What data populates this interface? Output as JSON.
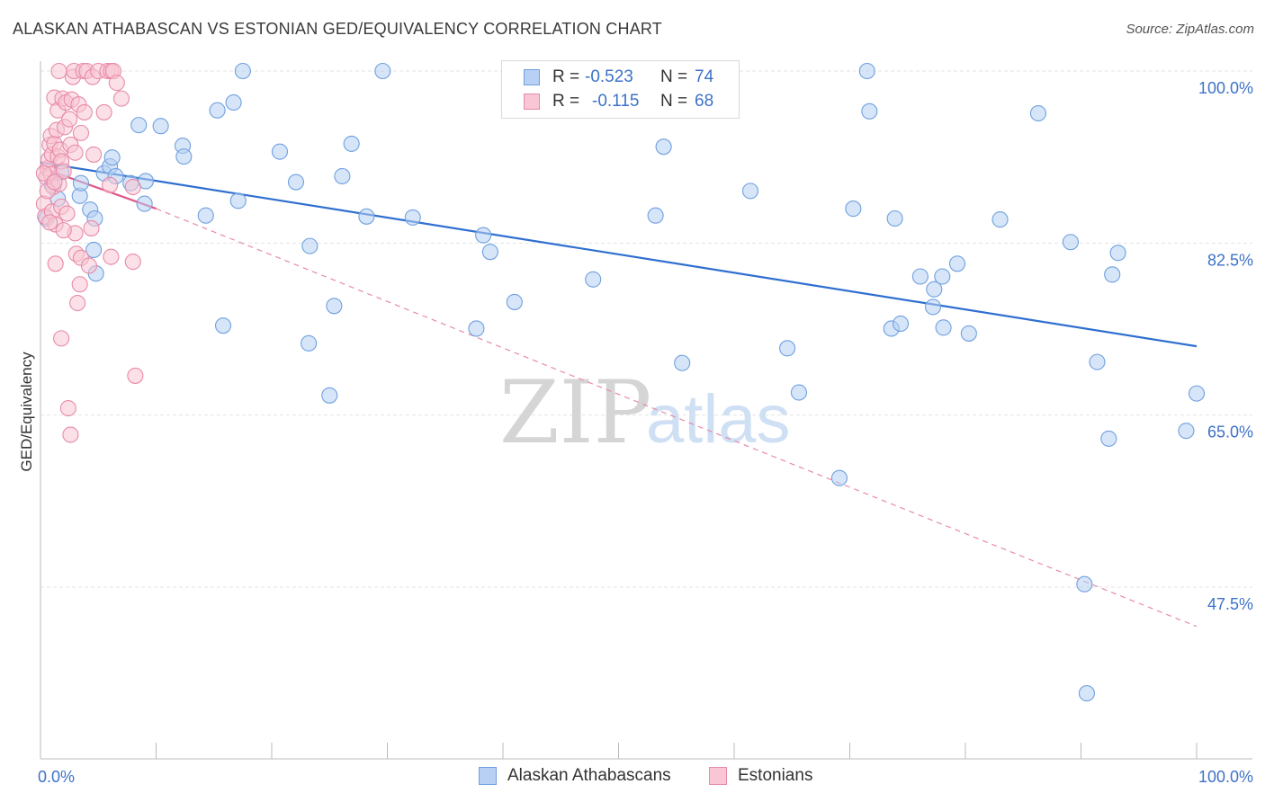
{
  "header": {
    "title": "ALASKAN ATHABASCAN VS ESTONIAN GED/EQUIVALENCY CORRELATION CHART",
    "source": "Source: ZipAtlas.com"
  },
  "legend": {
    "rows": [
      {
        "r_label": "R =",
        "r_value": "-0.523",
        "n_label": "N =",
        "n_value": "74",
        "color": "#6fa0e0",
        "fill": "#b7d0f3"
      },
      {
        "r_label": "R =",
        "r_value": "-0.115",
        "n_label": "N =",
        "n_value": "68",
        "color": "#e88aa8",
        "fill": "#f8c6d4"
      }
    ]
  },
  "bottom_legend": {
    "items": [
      {
        "label": "Alaskan Athabascans",
        "color": "#6fa0e0",
        "fill": "#b7d0f3"
      },
      {
        "label": "Estonians",
        "color": "#e88aa8",
        "fill": "#f8c6d4"
      }
    ]
  },
  "watermark": {
    "zip": "ZIP",
    "atlas": "atlas"
  },
  "chart_data": {
    "type": "scatter",
    "title": "ALASKAN ATHABASCAN VS ESTONIAN GED/EQUIVALENCY CORRELATION CHART",
    "xlabel": "",
    "ylabel": "GED/Equivalency",
    "xlim": [
      0,
      100
    ],
    "ylim": [
      33,
      102
    ],
    "x_tick_labels": [
      "0.0%",
      "100.0%"
    ],
    "y_ticks": [
      47.5,
      65.0,
      82.5,
      100.0
    ],
    "y_tick_labels": [
      "47.5%",
      "65.0%",
      "82.5%",
      "100.0%"
    ],
    "grid": true,
    "legend_position": "top-center",
    "series": [
      {
        "name": "Alaskan Athabascans",
        "color": "#6fa0e0",
        "trend": {
          "x": [
            0,
            100
          ],
          "y": [
            90.7,
            72.0
          ],
          "style": "solid"
        },
        "points": [
          [
            0.5,
            85.0
          ],
          [
            1.0,
            88.4
          ],
          [
            1.5,
            87.0
          ],
          [
            1.8,
            89.7
          ],
          [
            3.4,
            87.3
          ],
          [
            3.5,
            88.6
          ],
          [
            4.3,
            85.9
          ],
          [
            4.7,
            85.0
          ],
          [
            4.6,
            81.8
          ],
          [
            4.8,
            79.4
          ],
          [
            5.5,
            89.6
          ],
          [
            6.0,
            90.3
          ],
          [
            6.2,
            91.2
          ],
          [
            6.5,
            89.3
          ],
          [
            7.8,
            88.6
          ],
          [
            8.5,
            94.5
          ],
          [
            9.0,
            86.5
          ],
          [
            9.1,
            88.8
          ],
          [
            10.4,
            94.4
          ],
          [
            12.3,
            92.4
          ],
          [
            12.4,
            91.3
          ],
          [
            14.3,
            85.3
          ],
          [
            15.3,
            96.0
          ],
          [
            16.7,
            96.8
          ],
          [
            17.1,
            86.8
          ],
          [
            17.5,
            100.0
          ],
          [
            15.8,
            74.1
          ],
          [
            20.7,
            91.8
          ],
          [
            22.1,
            88.7
          ],
          [
            23.2,
            72.3
          ],
          [
            23.3,
            82.2
          ],
          [
            25.0,
            67.0
          ],
          [
            25.4,
            76.1
          ],
          [
            26.1,
            89.3
          ],
          [
            26.9,
            92.6
          ],
          [
            28.2,
            85.2
          ],
          [
            29.6,
            100.0
          ],
          [
            32.2,
            85.1
          ],
          [
            37.7,
            73.8
          ],
          [
            38.3,
            83.3
          ],
          [
            38.9,
            81.6
          ],
          [
            41.0,
            76.5
          ],
          [
            47.8,
            78.8
          ],
          [
            53.2,
            85.3
          ],
          [
            53.9,
            92.3
          ],
          [
            55.5,
            70.3
          ],
          [
            61.4,
            87.8
          ],
          [
            64.6,
            71.8
          ],
          [
            65.6,
            67.3
          ],
          [
            69.1,
            58.6
          ],
          [
            70.3,
            86.0
          ],
          [
            71.5,
            100.0
          ],
          [
            71.7,
            95.9
          ],
          [
            73.6,
            73.8
          ],
          [
            73.9,
            85.0
          ],
          [
            74.4,
            74.3
          ],
          [
            76.1,
            79.1
          ],
          [
            77.2,
            76.0
          ],
          [
            77.3,
            77.8
          ],
          [
            78.0,
            79.1
          ],
          [
            78.1,
            73.9
          ],
          [
            79.3,
            80.4
          ],
          [
            80.3,
            73.3
          ],
          [
            83.0,
            84.9
          ],
          [
            86.3,
            95.7
          ],
          [
            89.1,
            82.6
          ],
          [
            90.3,
            47.8
          ],
          [
            90.5,
            36.7
          ],
          [
            91.4,
            70.4
          ],
          [
            92.7,
            79.3
          ],
          [
            92.4,
            62.6
          ],
          [
            93.2,
            81.5
          ],
          [
            99.1,
            63.4
          ],
          [
            100.0,
            67.2
          ]
        ]
      },
      {
        "name": "Estonians",
        "color": "#e88aa8",
        "trend": {
          "x": [
            0,
            10
          ],
          "y": [
            90.2,
            86.0
          ],
          "style": "solid"
        },
        "trend_extension": {
          "x": [
            10,
            100
          ],
          "y": [
            86.0,
            43.5
          ],
          "style": "dashed"
        },
        "points": [
          [
            0.3,
            86.5
          ],
          [
            0.4,
            85.2
          ],
          [
            0.5,
            89.2
          ],
          [
            0.6,
            90.1
          ],
          [
            0.7,
            91.0
          ],
          [
            0.8,
            92.5
          ],
          [
            0.9,
            93.4
          ],
          [
            0.9,
            89.5
          ],
          [
            1.0,
            91.5
          ],
          [
            1.0,
            85.7
          ],
          [
            1.1,
            88.2
          ],
          [
            1.2,
            97.3
          ],
          [
            1.2,
            92.6
          ],
          [
            1.3,
            84.4
          ],
          [
            1.3,
            80.4
          ],
          [
            1.4,
            94.0
          ],
          [
            1.5,
            96.0
          ],
          [
            1.5,
            91.3
          ],
          [
            1.6,
            100.0
          ],
          [
            1.6,
            88.5
          ],
          [
            1.7,
            92.0
          ],
          [
            1.8,
            90.8
          ],
          [
            1.8,
            86.2
          ],
          [
            1.8,
            72.8
          ],
          [
            1.9,
            97.2
          ],
          [
            2.0,
            89.8
          ],
          [
            2.1,
            94.3
          ],
          [
            2.2,
            96.8
          ],
          [
            2.3,
            85.5
          ],
          [
            2.4,
            65.7
          ],
          [
            2.5,
            95.1
          ],
          [
            2.6,
            92.5
          ],
          [
            2.6,
            63.0
          ],
          [
            2.7,
            97.1
          ],
          [
            2.8,
            99.4
          ],
          [
            2.9,
            100.0
          ],
          [
            3.0,
            91.7
          ],
          [
            3.0,
            83.5
          ],
          [
            3.1,
            81.4
          ],
          [
            3.2,
            76.4
          ],
          [
            3.3,
            96.6
          ],
          [
            3.4,
            78.3
          ],
          [
            3.5,
            93.7
          ],
          [
            3.5,
            81.0
          ],
          [
            3.7,
            100.0
          ],
          [
            3.8,
            95.8
          ],
          [
            4.0,
            100.0
          ],
          [
            4.2,
            80.2
          ],
          [
            4.4,
            84.0
          ],
          [
            4.5,
            99.4
          ],
          [
            4.6,
            91.5
          ],
          [
            5.0,
            100.0
          ],
          [
            5.5,
            95.8
          ],
          [
            5.8,
            100.0
          ],
          [
            6.0,
            88.4
          ],
          [
            6.1,
            81.1
          ],
          [
            6.1,
            100.0
          ],
          [
            6.3,
            100.0
          ],
          [
            6.6,
            98.8
          ],
          [
            7.0,
            97.2
          ],
          [
            8.0,
            88.2
          ],
          [
            8.0,
            80.6
          ],
          [
            8.2,
            69.0
          ],
          [
            0.3,
            89.6
          ],
          [
            0.6,
            87.8
          ],
          [
            0.8,
            84.6
          ],
          [
            1.2,
            88.7
          ],
          [
            2.0,
            83.8
          ]
        ]
      }
    ]
  }
}
